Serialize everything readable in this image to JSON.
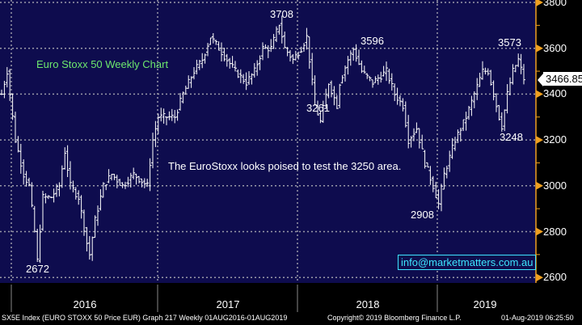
{
  "chart_data": {
    "type": "ohlc",
    "title": "Euro Stoxx 50 Weekly Chart",
    "annotation": "The EuroStoxx looks poised to test the 3250 area.",
    "ylim": [
      2600,
      3800
    ],
    "yticks": [
      "3800",
      "3600",
      "3400",
      "3200",
      "3000",
      "2800",
      "2600"
    ],
    "xticks": [
      "2016",
      "2017",
      "2018",
      "2019"
    ],
    "last_price": "3466.85",
    "labels": [
      {
        "text": "3708",
        "week": 101
      },
      {
        "text": "3596",
        "week": 128
      },
      {
        "text": "3573",
        "week": 185
      },
      {
        "text": "3261",
        "week": 115
      },
      {
        "text": "3248",
        "week": 185
      },
      {
        "text": "2908",
        "week": 156
      },
      {
        "text": "2672",
        "week": 13
      }
    ],
    "anchors": [
      [
        0,
        3400
      ],
      [
        2,
        3500
      ],
      [
        3,
        3400
      ],
      [
        5,
        3200
      ],
      [
        8,
        3050
      ],
      [
        10,
        3000
      ],
      [
        12,
        2800
      ],
      [
        13,
        2672
      ],
      [
        15,
        2950
      ],
      [
        18,
        2950
      ],
      [
        21,
        3000
      ],
      [
        23,
        3150
      ],
      [
        25,
        3000
      ],
      [
        28,
        2950
      ],
      [
        31,
        2750
      ],
      [
        32,
        2700
      ],
      [
        34,
        2850
      ],
      [
        37,
        3000
      ],
      [
        40,
        3050
      ],
      [
        44,
        3000
      ],
      [
        48,
        3050
      ],
      [
        53,
        3000
      ],
      [
        55,
        3200
      ],
      [
        57,
        3300
      ],
      [
        59,
        3300
      ],
      [
        63,
        3300
      ],
      [
        66,
        3400
      ],
      [
        70,
        3500
      ],
      [
        73,
        3550
      ],
      [
        76,
        3650
      ],
      [
        79,
        3600
      ],
      [
        82,
        3550
      ],
      [
        85,
        3500
      ],
      [
        89,
        3450
      ],
      [
        92,
        3500
      ],
      [
        95,
        3600
      ],
      [
        98,
        3600
      ],
      [
        101,
        3708
      ],
      [
        103,
        3600
      ],
      [
        106,
        3550
      ],
      [
        109,
        3600
      ],
      [
        111,
        3650
      ],
      [
        112,
        3550
      ],
      [
        114,
        3350
      ],
      [
        116,
        3280
      ],
      [
        119,
        3450
      ],
      [
        122,
        3350
      ],
      [
        123,
        3450
      ],
      [
        126,
        3550
      ],
      [
        128,
        3596
      ],
      [
        131,
        3500
      ],
      [
        135,
        3450
      ],
      [
        140,
        3500
      ],
      [
        143,
        3400
      ],
      [
        146,
        3350
      ],
      [
        148,
        3200
      ],
      [
        151,
        3250
      ],
      [
        154,
        3100
      ],
      [
        157,
        3000
      ],
      [
        159,
        2920
      ],
      [
        161,
        3050
      ],
      [
        165,
        3200
      ],
      [
        169,
        3300
      ],
      [
        172,
        3400
      ],
      [
        175,
        3500
      ],
      [
        177,
        3500
      ],
      [
        179,
        3400
      ],
      [
        181,
        3300
      ],
      [
        182,
        3260
      ],
      [
        184,
        3400
      ],
      [
        186,
        3500
      ],
      [
        188,
        3550
      ],
      [
        190,
        3467
      ]
    ]
  },
  "links": {
    "info": "info@marketmatters.com.au"
  },
  "footer": {
    "left": "SX5E Index (EURO STOXX 50 Price EUR) Graph 217  Weekly 01AUG2016-01AUG2019",
    "center": "Copyright© 2019 Bloomberg Finance L.P.",
    "right": "01-Aug-2019 06:25:50"
  },
  "colors": {
    "bg": "#0e0c4e",
    "axis": "#f0a020",
    "grid": "#9a9aa8"
  }
}
